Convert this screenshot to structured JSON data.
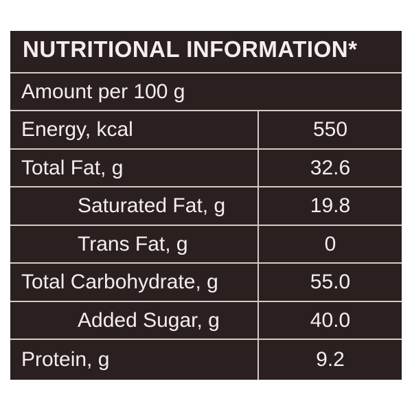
{
  "header": {
    "title": "NUTRITIONAL INFORMATION*",
    "subtitle": "Amount per 100 g"
  },
  "table": {
    "rows": [
      [
        "Energy, kcal",
        "550"
      ],
      [
        "Total Fat, g",
        "32.6"
      ],
      [
        "Saturated Fat, g",
        "19.8"
      ],
      [
        "Trans Fat, g",
        "0"
      ],
      [
        "Total Carbohydrate, g",
        "55.0"
      ],
      [
        "Added Sugar, g",
        "40.0"
      ],
      [
        "Protein, g",
        "9.2"
      ]
    ]
  }
}
